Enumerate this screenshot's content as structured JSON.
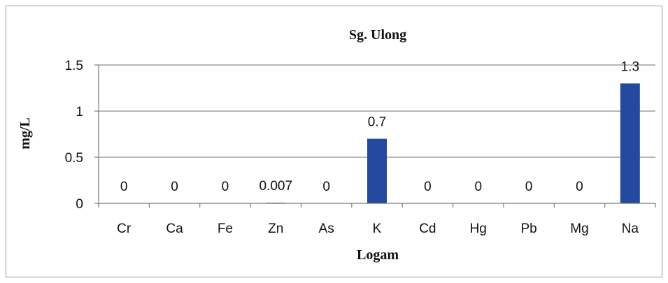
{
  "chart_data": {
    "type": "bar",
    "title": "Sg. Ulong",
    "xlabel": "Logam",
    "ylabel": "mg/L",
    "categories": [
      "Cr",
      "Ca",
      "Fe",
      "Zn",
      "As",
      "K",
      "Cd",
      "Hg",
      "Pb",
      "Mg",
      "Na"
    ],
    "values": [
      0,
      0,
      0,
      0.007,
      0,
      0.7,
      0,
      0,
      0,
      0,
      1.3
    ],
    "data_labels": [
      "0",
      "0",
      "0",
      "0.007",
      "0",
      "0.7",
      "0",
      "0",
      "0",
      "0",
      "1.3"
    ],
    "ylim": [
      0,
      1.5
    ],
    "yticks": [
      "0",
      "0.5",
      "1",
      "1.5"
    ],
    "ytick_values": [
      0,
      0.5,
      1,
      1.5
    ],
    "grid": true,
    "legend": "none",
    "bar_color": "#2449a0"
  }
}
